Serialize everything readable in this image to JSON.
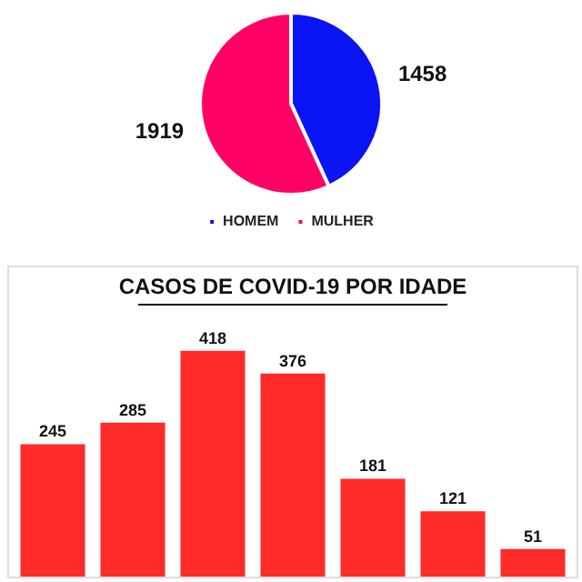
{
  "chart_data": [
    {
      "type": "pie",
      "categories": [
        "HOMEM",
        "MULHER"
      ],
      "values": [
        1458,
        1919
      ],
      "colors": [
        "#0a14f5",
        "#ff0066"
      ],
      "data_labels": true,
      "legend": "bottom"
    },
    {
      "type": "bar",
      "title": "CASOS DE COVID-19 POR IDADE",
      "categories": [
        null,
        null,
        null,
        null,
        null,
        null,
        null
      ],
      "values": [
        245,
        285,
        418,
        376,
        181,
        121,
        51
      ],
      "color": "#ff2a2a",
      "data_labels": true,
      "legend": false,
      "tick_labels": false
    }
  ]
}
